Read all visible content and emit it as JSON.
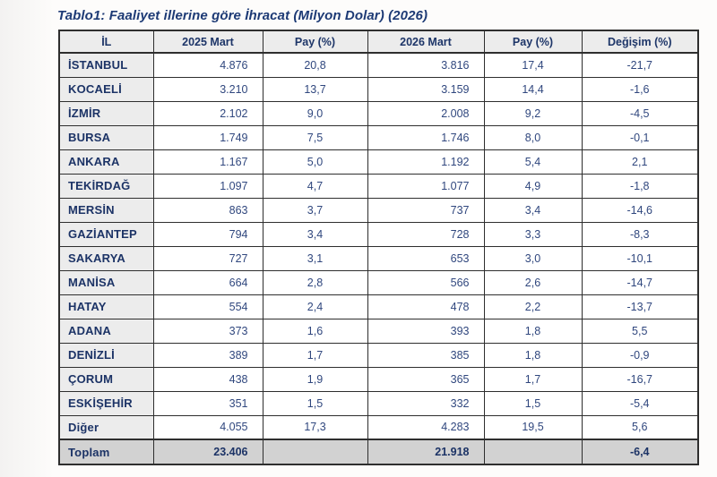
{
  "title": "Tablo1: Faaliyet illerine göre İhracat (Milyon Dolar) (2026)",
  "colors": {
    "text_navy": "#1c3366",
    "header_bg": "#ececec",
    "il_column_bg": "#ececec",
    "total_row_bg": "#d2d2d2",
    "border": "#2e2e2e"
  },
  "table": {
    "headers": [
      "İL",
      "2025 Mart",
      "Pay (%)",
      "2026 Mart",
      "Pay (%)",
      "Değişim (%)"
    ],
    "rows": [
      {
        "il": "İSTANBUL",
        "mart_2025": "4.876",
        "pay_2025": "20,8",
        "mart_2026": "3.816",
        "pay_2026": "17,4",
        "degisim": "-21,7"
      },
      {
        "il": "KOCAELİ",
        "mart_2025": "3.210",
        "pay_2025": "13,7",
        "mart_2026": "3.159",
        "pay_2026": "14,4",
        "degisim": "-1,6"
      },
      {
        "il": "İZMİR",
        "mart_2025": "2.102",
        "pay_2025": "9,0",
        "mart_2026": "2.008",
        "pay_2026": "9,2",
        "degisim": "-4,5"
      },
      {
        "il": "BURSA",
        "mart_2025": "1.749",
        "pay_2025": "7,5",
        "mart_2026": "1.746",
        "pay_2026": "8,0",
        "degisim": "-0,1"
      },
      {
        "il": "ANKARA",
        "mart_2025": "1.167",
        "pay_2025": "5,0",
        "mart_2026": "1.192",
        "pay_2026": "5,4",
        "degisim": "2,1"
      },
      {
        "il": "TEKİRDAĞ",
        "mart_2025": "1.097",
        "pay_2025": "4,7",
        "mart_2026": "1.077",
        "pay_2026": "4,9",
        "degisim": "-1,8"
      },
      {
        "il": "MERSİN",
        "mart_2025": "863",
        "pay_2025": "3,7",
        "mart_2026": "737",
        "pay_2026": "3,4",
        "degisim": "-14,6"
      },
      {
        "il": "GAZİANTEP",
        "mart_2025": "794",
        "pay_2025": "3,4",
        "mart_2026": "728",
        "pay_2026": "3,3",
        "degisim": "-8,3"
      },
      {
        "il": "SAKARYA",
        "mart_2025": "727",
        "pay_2025": "3,1",
        "mart_2026": "653",
        "pay_2026": "3,0",
        "degisim": "-10,1"
      },
      {
        "il": "MANİSA",
        "mart_2025": "664",
        "pay_2025": "2,8",
        "mart_2026": "566",
        "pay_2026": "2,6",
        "degisim": "-14,7"
      },
      {
        "il": "HATAY",
        "mart_2025": "554",
        "pay_2025": "2,4",
        "mart_2026": "478",
        "pay_2026": "2,2",
        "degisim": "-13,7"
      },
      {
        "il": "ADANA",
        "mart_2025": "373",
        "pay_2025": "1,6",
        "mart_2026": "393",
        "pay_2026": "1,8",
        "degisim": "5,5"
      },
      {
        "il": "DENİZLİ",
        "mart_2025": "389",
        "pay_2025": "1,7",
        "mart_2026": "385",
        "pay_2026": "1,8",
        "degisim": "-0,9"
      },
      {
        "il": "ÇORUM",
        "mart_2025": "438",
        "pay_2025": "1,9",
        "mart_2026": "365",
        "pay_2026": "1,7",
        "degisim": "-16,7"
      },
      {
        "il": "ESKİŞEHİR",
        "mart_2025": "351",
        "pay_2025": "1,5",
        "mart_2026": "332",
        "pay_2026": "1,5",
        "degisim": "-5,4"
      },
      {
        "il": "Diğer",
        "mart_2025": "4.055",
        "pay_2025": "17,3",
        "mart_2026": "4.283",
        "pay_2026": "19,5",
        "degisim": "5,6"
      }
    ],
    "total": {
      "il": "Toplam",
      "mart_2025": "23.406",
      "pay_2025": "",
      "mart_2026": "21.918",
      "pay_2026": "",
      "degisim": "-6,4"
    }
  }
}
